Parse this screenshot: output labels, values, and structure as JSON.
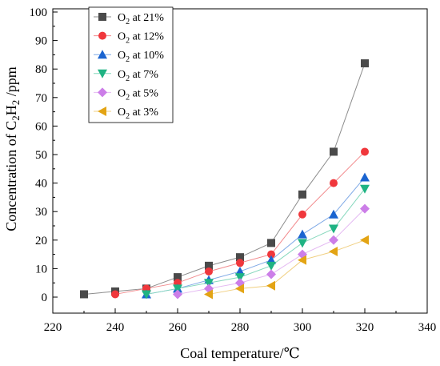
{
  "chart_data": {
    "type": "line",
    "xlabel": "Coal temperature/℃",
    "ylabel": {
      "prefix": "Concentration of C",
      "sub1": "2",
      "mid": "H",
      "sub2": "2",
      "suffix": " /ppm"
    },
    "xlim": [
      220,
      340
    ],
    "ylim": [
      0,
      100
    ],
    "xticks": [
      220,
      240,
      260,
      280,
      300,
      320,
      340
    ],
    "yticks": [
      0,
      10,
      20,
      30,
      40,
      50,
      60,
      70,
      80,
      90,
      100
    ],
    "grid": false,
    "legend_position": "top-left",
    "series": [
      {
        "name": "O2 at 21%",
        "legend": {
          "base": "O",
          "sub": "2",
          "rest": " at 21%"
        },
        "marker": "square",
        "color": "#4a4a4a",
        "line_color": "#8c8c8c",
        "x": [
          230,
          240,
          250,
          260,
          270,
          280,
          290,
          300,
          310,
          320
        ],
        "y": [
          1,
          2,
          3,
          7,
          11,
          14,
          19,
          36,
          51,
          82
        ]
      },
      {
        "name": "O2 at 12%",
        "legend": {
          "base": "O",
          "sub": "2",
          "rest": " at 12%"
        },
        "marker": "circle",
        "color": "#f0373c",
        "line_color": "#f28c8f",
        "x": [
          240,
          250,
          260,
          270,
          280,
          290,
          300,
          310,
          320
        ],
        "y": [
          1,
          3,
          5,
          9,
          12,
          15,
          29,
          40,
          51
        ]
      },
      {
        "name": "O2 at 10%",
        "legend": {
          "base": "O",
          "sub": "2",
          "rest": " at 10%"
        },
        "marker": "triangle-up",
        "color": "#1a64d0",
        "line_color": "#7fa9e6",
        "x": [
          250,
          260,
          270,
          280,
          290,
          300,
          310,
          320
        ],
        "y": [
          1,
          3,
          6,
          9,
          13,
          22,
          29,
          42
        ]
      },
      {
        "name": "O2 at 7%",
        "legend": {
          "base": "O",
          "sub": "2",
          "rest": " at 7%"
        },
        "marker": "triangle-down",
        "color": "#1fb383",
        "line_color": "#86d8bd",
        "x": [
          250,
          260,
          270,
          280,
          290,
          300,
          310,
          320
        ],
        "y": [
          1,
          3,
          5,
          7,
          11,
          19,
          24,
          38
        ]
      },
      {
        "name": "O2 at 5%",
        "legend": {
          "base": "O",
          "sub": "2",
          "rest": " at 5%"
        },
        "marker": "diamond",
        "color": "#cc7ee8",
        "line_color": "#e4b9f2",
        "x": [
          260,
          270,
          280,
          290,
          300,
          310,
          320
        ],
        "y": [
          1,
          3,
          5,
          8,
          15,
          20,
          31
        ]
      },
      {
        "name": "O2 at 3%",
        "legend": {
          "base": "O",
          "sub": "2",
          "rest": " at 3%"
        },
        "marker": "triangle-left",
        "color": "#e3a414",
        "line_color": "#f0cf80",
        "x": [
          270,
          280,
          290,
          300,
          310,
          320
        ],
        "y": [
          1,
          3,
          4,
          13,
          16,
          20
        ]
      }
    ]
  }
}
